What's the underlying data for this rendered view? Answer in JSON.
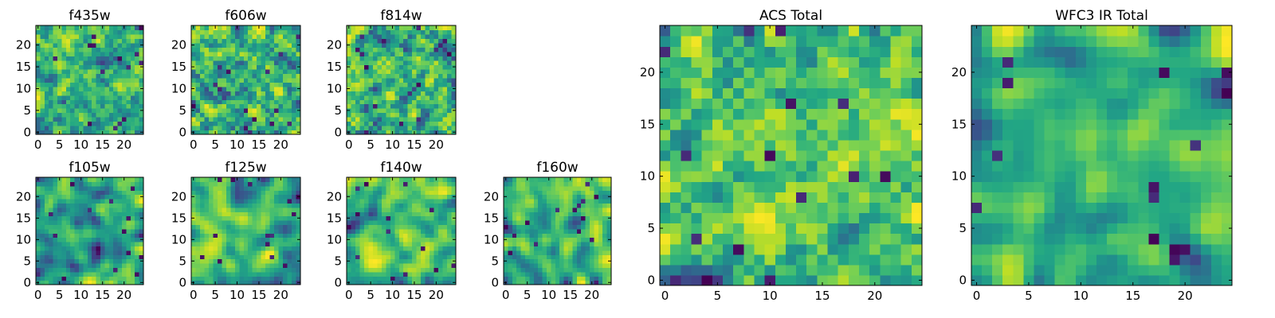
{
  "chart_data": [
    {
      "type": "heatmap",
      "title": "f435w",
      "grid_size": 25,
      "xlim": [
        -0.5,
        24.5
      ],
      "ylim": [
        -0.5,
        24.5
      ],
      "xticks": [
        0,
        5,
        10,
        15,
        20
      ],
      "yticks": [
        0,
        5,
        10,
        15,
        20
      ],
      "colormap": "viridis",
      "value_range": [
        0,
        1
      ],
      "texture": "fine-noise",
      "seed": 11
    },
    {
      "type": "heatmap",
      "title": "f606w",
      "grid_size": 25,
      "xlim": [
        -0.5,
        24.5
      ],
      "ylim": [
        -0.5,
        24.5
      ],
      "xticks": [
        0,
        5,
        10,
        15,
        20
      ],
      "yticks": [
        0,
        5,
        10,
        15,
        20
      ],
      "colormap": "viridis",
      "value_range": [
        0,
        1
      ],
      "texture": "fine-noise",
      "seed": 23
    },
    {
      "type": "heatmap",
      "title": "f814w",
      "grid_size": 25,
      "xlim": [
        -0.5,
        24.5
      ],
      "ylim": [
        -0.5,
        24.5
      ],
      "xticks": [
        0,
        5,
        10,
        15,
        20
      ],
      "yticks": [
        0,
        5,
        10,
        15,
        20
      ],
      "colormap": "viridis",
      "value_range": [
        0,
        1
      ],
      "texture": "fine-noise",
      "seed": 37
    },
    {
      "type": "heatmap",
      "title": "f105w",
      "grid_size": 25,
      "xlim": [
        -0.5,
        24.5
      ],
      "ylim": [
        -0.5,
        24.5
      ],
      "xticks": [
        0,
        5,
        10,
        15,
        20
      ],
      "yticks": [
        0,
        5,
        10,
        15,
        20
      ],
      "colormap": "viridis",
      "value_range": [
        0,
        1
      ],
      "texture": "smooth",
      "seed": 41
    },
    {
      "type": "heatmap",
      "title": "f125w",
      "grid_size": 25,
      "xlim": [
        -0.5,
        24.5
      ],
      "ylim": [
        -0.5,
        24.5
      ],
      "xticks": [
        0,
        5,
        10,
        15,
        20
      ],
      "yticks": [
        0,
        5,
        10,
        15,
        20
      ],
      "colormap": "viridis",
      "value_range": [
        0,
        1
      ],
      "texture": "smooth",
      "seed": 53
    },
    {
      "type": "heatmap",
      "title": "f140w",
      "grid_size": 25,
      "xlim": [
        -0.5,
        24.5
      ],
      "ylim": [
        -0.5,
        24.5
      ],
      "xticks": [
        0,
        5,
        10,
        15,
        20
      ],
      "yticks": [
        0,
        5,
        10,
        15,
        20
      ],
      "colormap": "viridis",
      "value_range": [
        0,
        1
      ],
      "texture": "smooth",
      "seed": 67
    },
    {
      "type": "heatmap",
      "title": "f160w",
      "grid_size": 25,
      "xlim": [
        -0.5,
        24.5
      ],
      "ylim": [
        -0.5,
        24.5
      ],
      "xticks": [
        0,
        5,
        10,
        15,
        20
      ],
      "yticks": [
        0,
        5,
        10,
        15,
        20
      ],
      "colormap": "viridis",
      "value_range": [
        0,
        1
      ],
      "texture": "smooth",
      "seed": 79
    },
    {
      "type": "heatmap",
      "title": "ACS Total",
      "grid_size": 25,
      "xlim": [
        -0.5,
        24.5
      ],
      "ylim": [
        -0.5,
        24.5
      ],
      "xticks": [
        0,
        5,
        10,
        15,
        20
      ],
      "yticks": [
        0,
        5,
        10,
        15,
        20
      ],
      "colormap": "viridis",
      "value_range": [
        0,
        1
      ],
      "texture": "fine-noise",
      "seed": 97
    },
    {
      "type": "heatmap",
      "title": "WFC3 IR Total",
      "grid_size": 25,
      "xlim": [
        -0.5,
        24.5
      ],
      "ylim": [
        -0.5,
        24.5
      ],
      "xticks": [
        0,
        5,
        10,
        15,
        20
      ],
      "yticks": [
        0,
        5,
        10,
        15,
        20
      ],
      "colormap": "viridis",
      "value_range": [
        0,
        1
      ],
      "texture": "smooth",
      "seed": 113
    }
  ],
  "colors": {
    "frame": "#000000",
    "background": "#ffffff"
  }
}
